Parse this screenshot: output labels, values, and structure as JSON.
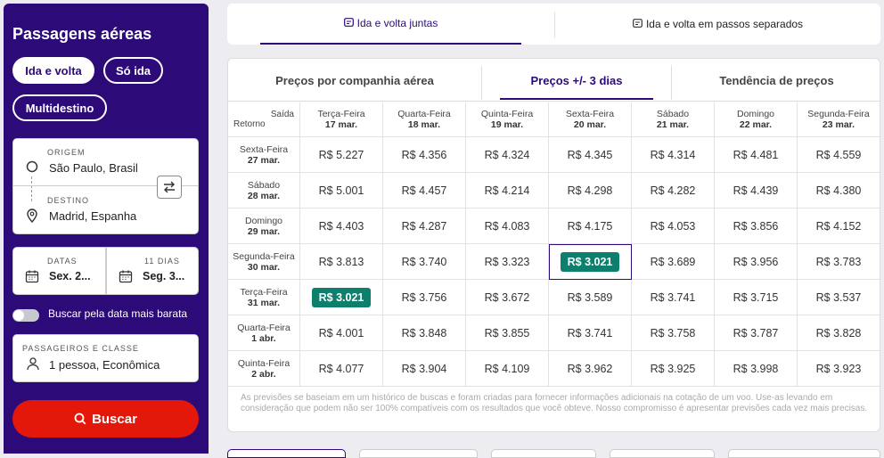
{
  "sidebar": {
    "title": "Passagens aéreas",
    "trip_types": [
      "Ida e volta",
      "Só ida",
      "Multidestino"
    ],
    "origin_label": "ORIGEM",
    "origin_value": "São Paulo, Brasil",
    "destination_label": "DESTINO",
    "destination_value": "Madrid, Espanha",
    "dates_label": "DATAS",
    "date_from": "Sex. 2...",
    "days_label": "11 DIAS",
    "date_to": "Seg. 3...",
    "cheapest_toggle": "Buscar pela data mais barata",
    "passengers_label": "PASSAGEIROS E CLASSE",
    "passengers_value": "1 pessoa, Econômica",
    "search_button": "Buscar"
  },
  "top_tabs": [
    "Ida e volta juntas",
    "Ida e volta em passos separados"
  ],
  "sub_tabs": [
    "Preços por companhia aérea",
    "Preços +/- 3 dias",
    "Tendência de preços"
  ],
  "matrix": {
    "corner_top": "Saída",
    "corner_bottom": "Retorno",
    "columns": [
      {
        "day": "Terça-Feira",
        "date": "17 mar."
      },
      {
        "day": "Quarta-Feira",
        "date": "18 mar."
      },
      {
        "day": "Quinta-Feira",
        "date": "19 mar."
      },
      {
        "day": "Sexta-Feira",
        "date": "20 mar."
      },
      {
        "day": "Sábado",
        "date": "21 mar."
      },
      {
        "day": "Domingo",
        "date": "22 mar."
      },
      {
        "day": "Segunda-Feira",
        "date": "23 mar."
      }
    ],
    "rows": [
      {
        "day": "Sexta-Feira",
        "date": "27 mar.",
        "prices": [
          "R$ 5.227",
          "R$ 4.356",
          "R$ 4.324",
          "R$ 4.345",
          "R$ 4.314",
          "R$ 4.481",
          "R$ 4.559"
        ]
      },
      {
        "day": "Sábado",
        "date": "28 mar.",
        "prices": [
          "R$ 5.001",
          "R$ 4.457",
          "R$ 4.214",
          "R$ 4.298",
          "R$ 4.282",
          "R$ 4.439",
          "R$ 4.380"
        ]
      },
      {
        "day": "Domingo",
        "date": "29 mar.",
        "prices": [
          "R$ 4.403",
          "R$ 4.287",
          "R$ 4.083",
          "R$ 4.175",
          "R$ 4.053",
          "R$ 3.856",
          "R$ 4.152"
        ]
      },
      {
        "day": "Segunda-Feira",
        "date": "30 mar.",
        "prices": [
          "R$ 3.813",
          "R$ 3.740",
          "R$ 3.323",
          "R$ 3.021",
          "R$ 3.689",
          "R$ 3.956",
          "R$ 3.783"
        ]
      },
      {
        "day": "Terça-Feira",
        "date": "31 mar.",
        "prices": [
          "R$ 3.021",
          "R$ 3.756",
          "R$ 3.672",
          "R$ 3.589",
          "R$ 3.741",
          "R$ 3.715",
          "R$ 3.537"
        ]
      },
      {
        "day": "Quarta-Feira",
        "date": "1 abr.",
        "prices": [
          "R$ 4.001",
          "R$ 3.848",
          "R$ 3.855",
          "R$ 3.741",
          "R$ 3.758",
          "R$ 3.787",
          "R$ 3.828"
        ]
      },
      {
        "day": "Quinta-Feira",
        "date": "2 abr.",
        "prices": [
          "R$ 4.077",
          "R$ 3.904",
          "R$ 4.109",
          "R$ 3.962",
          "R$ 3.925",
          "R$ 3.998",
          "R$ 3.923"
        ]
      }
    ],
    "highlighted": [
      [
        3,
        3
      ],
      [
        4,
        0
      ]
    ],
    "selected": [
      3,
      3
    ]
  },
  "disclaimer": "As previsões se baseiam em um histórico de buscas e foram criadas para fornecer informações adicionais na cotação de um voo. Use-as levando em consideração que podem não ser 100% compatíveis com os resultados que você obteve. Nosso compromisso é apresentar previsões cada vez mais precisas.",
  "colors": {
    "brand": "#2c0a78",
    "search": "#e3170a",
    "best_price": "#0e7f6c"
  }
}
